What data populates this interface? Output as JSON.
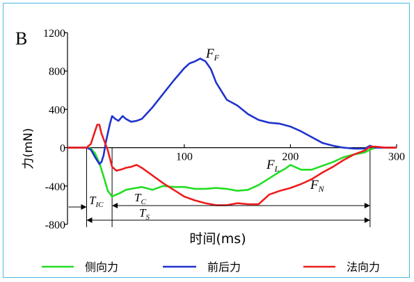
{
  "panel_label": "B",
  "colors": {
    "frame": "#49b8e4",
    "lateral": "#22dd22",
    "fore_aft": "#1f33cc",
    "normal": "#ee1c1c"
  },
  "chart_data": {
    "type": "line",
    "xlabel": "时间(ms)",
    "ylabel": "力(mN)",
    "xlim": [
      -10,
      300
    ],
    "ylim": [
      -800,
      1200
    ],
    "xticks": [
      100,
      200,
      300
    ],
    "yticks": [
      -800,
      -400,
      0,
      400,
      800,
      1200
    ],
    "y_tick_labels": [
      "-800",
      "-400",
      "0",
      "400",
      "800",
      "1200"
    ],
    "x_tick_labels": [
      "100",
      "200",
      "300"
    ],
    "grid": false,
    "legend_position": "bottom",
    "series": [
      {
        "name": "侧向力",
        "key": "lateral",
        "color": "#22dd22",
        "x": [
          -20,
          0,
          8,
          12,
          16,
          20,
          24,
          28,
          32,
          36,
          40,
          45,
          50,
          60,
          70,
          80,
          90,
          100,
          110,
          120,
          130,
          140,
          150,
          160,
          170,
          180,
          190,
          195,
          200,
          210,
          220,
          230,
          240,
          250,
          260,
          270,
          275,
          280,
          290,
          300
        ],
        "y": [
          0,
          0,
          0,
          -10,
          -60,
          -160,
          -300,
          -450,
          -510,
          -490,
          -470,
          -440,
          -430,
          -410,
          -440,
          -400,
          -410,
          -410,
          -430,
          -430,
          -420,
          -430,
          -450,
          -440,
          -390,
          -320,
          -250,
          -220,
          -180,
          -230,
          -230,
          -190,
          -150,
          -100,
          -70,
          -50,
          -20,
          0,
          0,
          0
        ]
      },
      {
        "name": "前后力",
        "key": "fore_aft",
        "color": "#1f33cc",
        "x": [
          -20,
          0,
          8,
          12,
          16,
          20,
          22,
          24,
          26,
          30,
          32,
          35,
          38,
          42,
          45,
          50,
          55,
          60,
          70,
          80,
          90,
          100,
          105,
          110,
          115,
          120,
          125,
          130,
          140,
          150,
          160,
          170,
          180,
          190,
          200,
          210,
          220,
          230,
          240,
          250,
          260,
          270,
          275,
          280,
          290,
          300
        ],
        "y": [
          0,
          0,
          0,
          -20,
          -100,
          -170,
          -150,
          -80,
          50,
          250,
          330,
          300,
          280,
          330,
          300,
          270,
          280,
          300,
          420,
          560,
          700,
          830,
          880,
          900,
          930,
          900,
          820,
          680,
          500,
          440,
          350,
          290,
          260,
          250,
          220,
          170,
          110,
          50,
          20,
          0,
          -10,
          -10,
          20,
          0,
          0,
          0
        ]
      },
      {
        "name": "法向力",
        "key": "normal",
        "color": "#ee1c1c",
        "x": [
          -20,
          0,
          8,
          12,
          15,
          18,
          20,
          22,
          25,
          28,
          32,
          36,
          40,
          45,
          50,
          55,
          60,
          70,
          80,
          90,
          100,
          110,
          120,
          130,
          140,
          150,
          160,
          170,
          180,
          190,
          200,
          210,
          220,
          230,
          240,
          250,
          260,
          270,
          275,
          280,
          290,
          300
        ],
        "y": [
          0,
          0,
          0,
          40,
          140,
          240,
          240,
          150,
          60,
          -30,
          -200,
          -240,
          -230,
          -210,
          -200,
          -180,
          -210,
          -290,
          -370,
          -440,
          -510,
          -550,
          -580,
          -600,
          -600,
          -580,
          -590,
          -590,
          -490,
          -450,
          -420,
          -380,
          -330,
          -260,
          -200,
          -130,
          -70,
          -30,
          10,
          10,
          0,
          0
        ]
      }
    ],
    "annotations": {
      "series_labels": {
        "fore_aft": "F",
        "fore_aft_sub": "F",
        "lateral": "F",
        "lateral_sub": "L",
        "normal": "F",
        "normal_sub": "N"
      },
      "interval_labels": {
        "tic": "T",
        "tic_sub": "IC",
        "tc": "T",
        "tc_sub": "C",
        "ts": "T",
        "ts_sub": "S"
      },
      "intervals": [
        {
          "name": "TIC",
          "from": 8,
          "to": 32
        },
        {
          "name": "TC",
          "from": 32,
          "to": 275
        },
        {
          "name": "TS",
          "from": 8,
          "to": 275
        }
      ]
    }
  }
}
